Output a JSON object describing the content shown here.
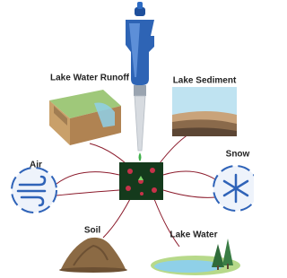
{
  "nodes": [
    {
      "label": "Lake Water Runoff"
    },
    {
      "label": "Lake Sediment"
    },
    {
      "label": "Air"
    },
    {
      "label": "Snow"
    },
    {
      "label": "Soil"
    },
    {
      "label": "Lake Water"
    }
  ]
}
